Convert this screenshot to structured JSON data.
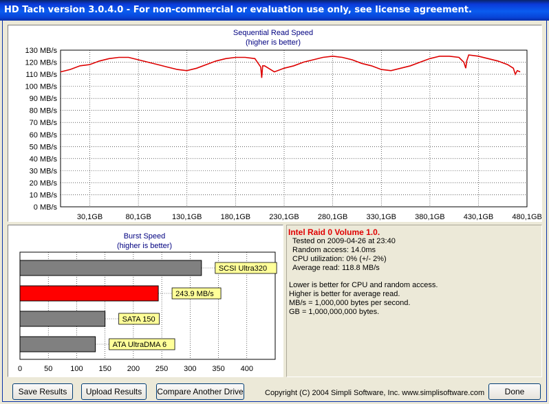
{
  "window": {
    "title": "HD Tach version 3.0.4.0  - For non-commercial or evaluation use only, see license agreement."
  },
  "chart_data": [
    {
      "type": "line",
      "title": "Sequential Read Speed",
      "subtitle": "(higher is better)",
      "ylim": [
        0,
        130
      ],
      "y_ticks": [
        "0 MB/s",
        "10 MB/s",
        "20 MB/s",
        "30 MB/s",
        "40 MB/s",
        "50 MB/s",
        "60 MB/s",
        "70 MB/s",
        "80 MB/s",
        "90 MB/s",
        "100 MB/s",
        "110 MB/s",
        "120 MB/s",
        "130 MB/s"
      ],
      "x_ticks": [
        "30,1GB",
        "80,1GB",
        "130,1GB",
        "180,1GB",
        "230,1GB",
        "280,1GB",
        "330,1GB",
        "380,1GB",
        "430,1GB",
        "480,1GB"
      ],
      "series": [
        {
          "color": "#dd0000",
          "x": [
            0,
            10,
            20,
            30,
            40,
            50,
            60,
            70,
            80,
            90,
            100,
            110,
            120,
            130,
            140,
            150,
            160,
            170,
            180,
            190,
            200,
            206,
            207,
            208,
            210,
            220,
            230,
            240,
            250,
            260,
            270,
            280,
            290,
            300,
            310,
            320,
            330,
            340,
            350,
            360,
            370,
            380,
            390,
            400,
            410,
            415,
            417,
            418,
            420,
            430,
            440,
            450,
            460,
            466,
            468,
            470,
            473
          ],
          "y": [
            112,
            114,
            117,
            118,
            121,
            123,
            124,
            124,
            122,
            120,
            118,
            116,
            114,
            113,
            115,
            118,
            121,
            123,
            124,
            124,
            123,
            116,
            107,
            117,
            117,
            112,
            115,
            117,
            120,
            122,
            124,
            125,
            124,
            122,
            119,
            117,
            114,
            113,
            115,
            117,
            120,
            123,
            125,
            125,
            124,
            120,
            115,
            121,
            126,
            125,
            123,
            121,
            118,
            115,
            110,
            113,
            112
          ]
        }
      ]
    },
    {
      "type": "bar",
      "title": "Burst Speed",
      "subtitle": "(higher is better)",
      "xlim": [
        0,
        450
      ],
      "x_ticks": [
        "0",
        "50",
        "100",
        "150",
        "200",
        "250",
        "300",
        "350",
        "400"
      ],
      "categories": [
        "SCSI Ultra320",
        "243.9 MB/s",
        "SATA 150",
        "ATA UltraDMA 6"
      ],
      "values": [
        320,
        243.9,
        150,
        133
      ],
      "colors": [
        "#808080",
        "#ff0000",
        "#808080",
        "#808080"
      ]
    }
  ],
  "info": {
    "title": "Intel Raid 0 Volume 1.0.",
    "tested_on": "Tested on 2009-04-26 at 23:40",
    "random_access": "Random access: 14.0ms",
    "cpu": "CPU utilization: 0% (+/- 2%)",
    "avg_read": "Average read: 118.8 MB/s",
    "note1": "Lower is better for CPU and random access.",
    "note2": "Higher is better for average read.",
    "note3": "MB/s = 1,000,000 bytes per second.",
    "note4": "GB = 1,000,000,000 bytes."
  },
  "buttons": {
    "save": "Save Results",
    "upload": "Upload Results",
    "compare": "Compare Another Drive",
    "done": "Done"
  },
  "copyright": "Copyright (C) 2004 Simpli Software, Inc. www.simplisoftware.com"
}
